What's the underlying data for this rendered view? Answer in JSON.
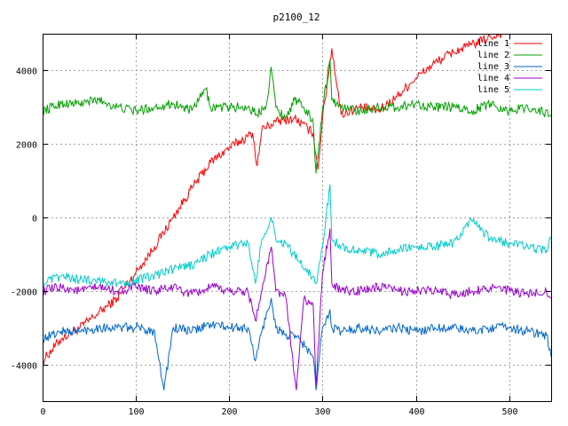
{
  "chart_data": {
    "type": "line",
    "title": "p2100_12",
    "xlabel": "",
    "ylabel": "",
    "xlim": [
      0,
      545
    ],
    "ylim": [
      -5000,
      5000
    ],
    "xticks": [
      0,
      100,
      200,
      300,
      400,
      500
    ],
    "yticks": [
      -4000,
      -2000,
      0,
      2000,
      4000
    ],
    "grid": true,
    "legend_position": "top-right",
    "series": [
      {
        "name": "line 1",
        "color": "#ff0000",
        "x": [
          0,
          20,
          40,
          60,
          80,
          100,
          120,
          140,
          160,
          180,
          200,
          220,
          225,
          230,
          235,
          250,
          270,
          290,
          295,
          300,
          310,
          320,
          340,
          360,
          380,
          400,
          420,
          440,
          460,
          480,
          500,
          520,
          545
        ],
        "y": [
          -3900,
          -3300,
          -3000,
          -2600,
          -2200,
          -1500,
          -800,
          0,
          800,
          1500,
          1900,
          2200,
          2300,
          1400,
          2400,
          2600,
          2700,
          2300,
          1300,
          2700,
          4600,
          2800,
          3000,
          2900,
          3300,
          3800,
          4200,
          4500,
          4700,
          4900,
          5100,
          5300,
          5700
        ]
      },
      {
        "name": "line 2",
        "color": "#00a000",
        "x": [
          0,
          20,
          40,
          60,
          80,
          100,
          120,
          140,
          160,
          175,
          180,
          200,
          220,
          230,
          240,
          245,
          250,
          260,
          270,
          280,
          290,
          293,
          300,
          308,
          310,
          320,
          340,
          360,
          380,
          400,
          420,
          440,
          460,
          480,
          500,
          520,
          545
        ],
        "y": [
          2900,
          3100,
          3100,
          3200,
          3000,
          2900,
          3000,
          3100,
          2900,
          3500,
          3000,
          3000,
          3000,
          2800,
          3100,
          4100,
          3000,
          2700,
          3200,
          3000,
          2600,
          1200,
          3000,
          4300,
          3200,
          3000,
          2900,
          3000,
          3000,
          3100,
          3000,
          3000,
          2900,
          3100,
          2900,
          3000,
          2800
        ]
      },
      {
        "name": "line 3",
        "color": "#0066cc",
        "x": [
          0,
          20,
          40,
          60,
          80,
          100,
          120,
          130,
          140,
          160,
          180,
          200,
          220,
          228,
          235,
          245,
          250,
          260,
          275,
          290,
          293,
          300,
          308,
          310,
          320,
          340,
          360,
          380,
          400,
          420,
          440,
          460,
          480,
          500,
          520,
          540,
          545
        ],
        "y": [
          -3300,
          -3100,
          -3100,
          -3000,
          -3000,
          -3000,
          -3100,
          -4700,
          -3000,
          -3100,
          -2900,
          -3000,
          -3000,
          -3900,
          -3100,
          -2200,
          -3000,
          -3200,
          -3300,
          -3800,
          -4700,
          -3000,
          -2500,
          -3000,
          -3100,
          -3000,
          -3100,
          -3000,
          -3100,
          -3000,
          -3000,
          -3100,
          -3000,
          -3000,
          -3100,
          -3200,
          -3800
        ]
      },
      {
        "name": "line 4",
        "color": "#9900cc",
        "x": [
          0,
          20,
          40,
          60,
          80,
          100,
          120,
          140,
          160,
          180,
          200,
          220,
          228,
          235,
          245,
          250,
          260,
          272,
          280,
          290,
          293,
          300,
          308,
          310,
          320,
          340,
          360,
          380,
          400,
          420,
          440,
          460,
          480,
          500,
          520,
          540,
          545
        ],
        "y": [
          -2000,
          -1900,
          -2000,
          -1900,
          -2000,
          -1900,
          -2000,
          -1900,
          -2100,
          -1900,
          -2000,
          -2000,
          -2800,
          -2000,
          -800,
          -2000,
          -2100,
          -4700,
          -2200,
          -2400,
          -4600,
          -1500,
          -300,
          -1800,
          -2000,
          -2000,
          -1900,
          -2000,
          -2000,
          -2000,
          -2100,
          -2000,
          -1900,
          -2000,
          -2100,
          -2000,
          -2200
        ]
      },
      {
        "name": "line 5",
        "color": "#00cccc",
        "x": [
          0,
          20,
          40,
          60,
          80,
          100,
          120,
          140,
          160,
          180,
          200,
          220,
          228,
          235,
          245,
          250,
          260,
          275,
          290,
          293,
          300,
          308,
          310,
          320,
          340,
          360,
          380,
          400,
          420,
          440,
          460,
          480,
          500,
          520,
          540,
          545
        ],
        "y": [
          -1800,
          -1600,
          -1700,
          -1700,
          -1800,
          -1700,
          -1600,
          -1400,
          -1300,
          -1000,
          -800,
          -700,
          -1800,
          -600,
          0,
          -600,
          -700,
          -1200,
          -1600,
          -1800,
          -800,
          900,
          -600,
          -800,
          -900,
          -1000,
          -900,
          -800,
          -800,
          -700,
          -100,
          -600,
          -700,
          -800,
          -900,
          -600
        ]
      }
    ]
  }
}
